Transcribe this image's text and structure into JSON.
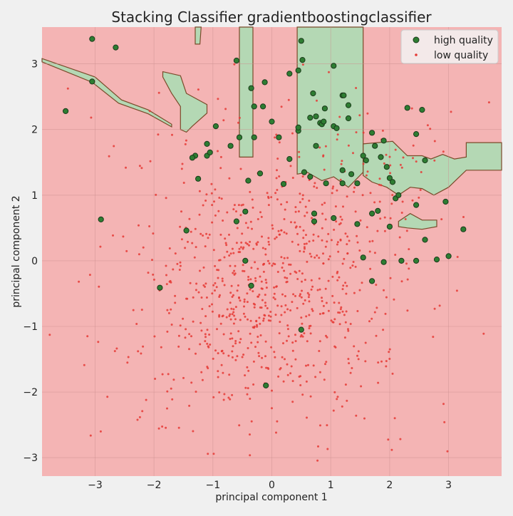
{
  "chart_data": {
    "type": "scatter",
    "title": "Stacking Classifier gradientboostingclassifier",
    "xlabel": "principal component 1",
    "ylabel": "principal component 2",
    "xlim": [
      -3.9,
      3.9
    ],
    "ylim": [
      -3.28,
      3.56
    ],
    "xticks": [
      -3,
      -2,
      -1,
      0,
      1,
      2,
      3
    ],
    "yticks": [
      -3,
      -2,
      -1,
      0,
      1,
      2,
      3
    ],
    "grid": true,
    "legend_placement": "top-right",
    "background_region": {
      "label": "low quality",
      "color": "#f4b4b4"
    },
    "decision_regions": [
      {
        "label": "high quality",
        "color": "#b4d8b4",
        "edge": "#7a4a2a",
        "polygon": [
          [
            -0.55,
            3.56
          ],
          [
            -0.32,
            3.56
          ],
          [
            -0.32,
            1.58
          ],
          [
            -0.55,
            1.58
          ]
        ]
      },
      {
        "label": "high quality",
        "color": "#b4d8b4",
        "edge": "#7a4a2a",
        "polygon": [
          [
            0.43,
            3.56
          ],
          [
            1.55,
            3.56
          ],
          [
            1.55,
            1.35
          ],
          [
            1.3,
            1.12
          ],
          [
            1.05,
            1.28
          ],
          [
            0.85,
            1.22
          ],
          [
            0.6,
            1.35
          ],
          [
            0.43,
            1.32
          ]
        ]
      },
      {
        "label": "high quality",
        "color": "#b4d8b4",
        "edge": "#7a4a2a",
        "polygon": [
          [
            -1.3,
            3.56
          ],
          [
            -1.2,
            3.56
          ],
          [
            -1.22,
            3.3
          ],
          [
            -1.3,
            3.3
          ]
        ]
      },
      {
        "label": "high quality",
        "color": "#b4d8b4",
        "edge": "#7a4a2a",
        "polygon": [
          [
            -3.9,
            3.08
          ],
          [
            -3.0,
            2.8
          ],
          [
            -2.55,
            2.45
          ],
          [
            -2.1,
            2.3
          ],
          [
            -1.7,
            2.08
          ],
          [
            -1.7,
            2.04
          ],
          [
            -2.1,
            2.24
          ],
          [
            -2.6,
            2.4
          ],
          [
            -3.05,
            2.72
          ],
          [
            -3.9,
            3.03
          ]
        ]
      },
      {
        "label": "high quality",
        "color": "#b4d8b4",
        "edge": "#7a4a2a",
        "polygon": [
          [
            -1.85,
            2.88
          ],
          [
            -1.55,
            2.82
          ],
          [
            -1.45,
            2.55
          ],
          [
            -1.1,
            2.38
          ],
          [
            -1.1,
            2.25
          ],
          [
            -1.35,
            2.05
          ],
          [
            -1.45,
            1.96
          ],
          [
            -1.55,
            2.0
          ],
          [
            -1.55,
            2.35
          ],
          [
            -1.7,
            2.55
          ],
          [
            -1.85,
            2.8
          ]
        ]
      },
      {
        "label": "high quality",
        "color": "#b4d8b4",
        "edge": "#7a4a2a",
        "polygon": [
          [
            1.55,
            1.78
          ],
          [
            2.05,
            1.82
          ],
          [
            2.3,
            1.6
          ],
          [
            2.55,
            1.6
          ],
          [
            2.7,
            1.55
          ],
          [
            2.9,
            1.62
          ],
          [
            3.1,
            1.55
          ],
          [
            3.3,
            1.58
          ],
          [
            3.3,
            1.8
          ],
          [
            3.9,
            1.8
          ],
          [
            3.9,
            1.38
          ],
          [
            3.3,
            1.38
          ],
          [
            3.0,
            1.12
          ],
          [
            2.75,
            1.0
          ],
          [
            2.55,
            1.1
          ],
          [
            2.35,
            1.12
          ],
          [
            2.15,
            1.0
          ],
          [
            1.95,
            1.12
          ],
          [
            1.7,
            1.2
          ],
          [
            1.55,
            1.3
          ]
        ]
      },
      {
        "label": "high quality",
        "color": "#b4d8b4",
        "edge": "#7a4a2a",
        "polygon": [
          [
            2.15,
            0.6
          ],
          [
            2.35,
            0.72
          ],
          [
            2.55,
            0.62
          ],
          [
            2.8,
            0.62
          ],
          [
            2.8,
            0.52
          ],
          [
            2.55,
            0.48
          ],
          [
            2.3,
            0.5
          ],
          [
            2.15,
            0.52
          ]
        ]
      }
    ],
    "series": [
      {
        "name": "high quality",
        "color": "#2e7d32",
        "marker": "circle-large",
        "points": [
          [
            -3.05,
            3.38
          ],
          [
            -2.65,
            3.25
          ],
          [
            -3.05,
            2.73
          ],
          [
            -3.5,
            2.28
          ],
          [
            -2.9,
            0.63
          ],
          [
            -1.9,
            -0.41
          ],
          [
            -1.45,
            0.46
          ],
          [
            -1.25,
            1.25
          ],
          [
            -1.3,
            1.6
          ],
          [
            -1.1,
            1.6
          ],
          [
            -1.05,
            1.65
          ],
          [
            -1.35,
            1.57
          ],
          [
            -1.1,
            1.78
          ],
          [
            -0.95,
            2.05
          ],
          [
            -0.7,
            1.75
          ],
          [
            -0.55,
            1.88
          ],
          [
            -0.6,
            3.05
          ],
          [
            -0.35,
            2.63
          ],
          [
            -0.3,
            2.35
          ],
          [
            -0.3,
            1.88
          ],
          [
            -0.15,
            2.35
          ],
          [
            -0.12,
            2.72
          ],
          [
            -0.2,
            1.33
          ],
          [
            -0.4,
            1.22
          ],
          [
            -0.45,
            0.75
          ],
          [
            -0.6,
            0.6
          ],
          [
            -0.45,
            0.0
          ],
          [
            -0.35,
            -0.38
          ],
          [
            -0.1,
            -1.9
          ],
          [
            0.0,
            2.12
          ],
          [
            0.12,
            1.88
          ],
          [
            0.3,
            2.85
          ],
          [
            0.45,
            2.9
          ],
          [
            0.3,
            1.55
          ],
          [
            0.2,
            1.17
          ],
          [
            0.5,
            3.35
          ],
          [
            0.52,
            3.06
          ],
          [
            0.45,
            1.98
          ],
          [
            0.45,
            2.03
          ],
          [
            0.55,
            1.35
          ],
          [
            0.65,
            2.18
          ],
          [
            0.65,
            1.28
          ],
          [
            0.7,
            2.55
          ],
          [
            0.75,
            2.2
          ],
          [
            0.75,
            1.75
          ],
          [
            0.82,
            2.1
          ],
          [
            0.85,
            2.08
          ],
          [
            0.88,
            2.12
          ],
          [
            0.9,
            2.32
          ],
          [
            0.92,
            1.18
          ],
          [
            0.72,
            0.72
          ],
          [
            0.72,
            0.6
          ],
          [
            1.05,
            2.97
          ],
          [
            1.05,
            2.05
          ],
          [
            1.1,
            2.02
          ],
          [
            1.2,
            2.52
          ],
          [
            1.22,
            2.52
          ],
          [
            1.3,
            2.37
          ],
          [
            1.3,
            2.17
          ],
          [
            1.35,
            1.32
          ],
          [
            1.2,
            1.38
          ],
          [
            1.2,
            1.18
          ],
          [
            1.45,
            1.18
          ],
          [
            1.05,
            0.65
          ],
          [
            1.45,
            0.56
          ],
          [
            1.55,
            1.6
          ],
          [
            1.6,
            1.53
          ],
          [
            1.7,
            1.95
          ],
          [
            1.75,
            1.75
          ],
          [
            1.7,
            0.72
          ],
          [
            1.8,
            0.76
          ],
          [
            1.85,
            1.58
          ],
          [
            1.95,
            1.43
          ],
          [
            1.9,
            1.83
          ],
          [
            2.0,
            1.26
          ],
          [
            2.05,
            1.2
          ],
          [
            2.1,
            0.95
          ],
          [
            2.15,
            1.0
          ],
          [
            2.0,
            0.52
          ],
          [
            2.3,
            2.33
          ],
          [
            2.45,
            1.93
          ],
          [
            2.55,
            2.3
          ],
          [
            2.6,
            1.53
          ],
          [
            2.45,
            0.85
          ],
          [
            2.6,
            0.32
          ],
          [
            2.45,
            0.0
          ],
          [
            2.2,
            0.0
          ],
          [
            1.9,
            -0.02
          ],
          [
            1.55,
            0.05
          ],
          [
            1.7,
            -0.31
          ],
          [
            2.8,
            0.02
          ],
          [
            2.95,
            0.9
          ],
          [
            3.0,
            0.07
          ],
          [
            3.25,
            0.48
          ],
          [
            0.5,
            -1.05
          ]
        ]
      },
      {
        "name": "low quality",
        "color": "#e53935",
        "marker": "dot-small",
        "generated": true
      }
    ]
  },
  "legend": {
    "items": [
      {
        "label": "high quality",
        "color": "#2e7d32",
        "marker": "circle-large"
      },
      {
        "label": "low quality",
        "color": "#e53935",
        "marker": "dot-small"
      }
    ]
  }
}
